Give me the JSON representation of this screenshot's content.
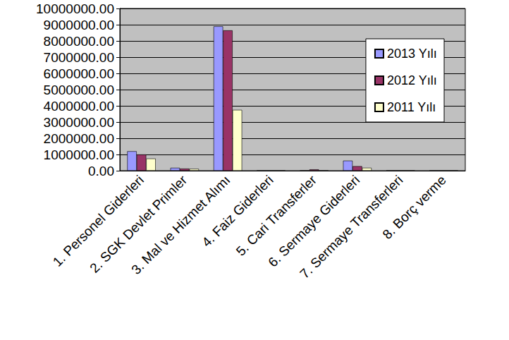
{
  "chart_data": {
    "type": "bar",
    "categories": [
      "1. Personel Giderleri",
      "2. SGK Devlet Primler",
      "3. Mal ve Hizmet Alımı",
      "4. Faiz Giderleri",
      "5. Cari Transferler",
      "6. Sermaye Giderleri",
      "7. Sermaye Transferleri",
      "8. Borç verme"
    ],
    "series": [
      {
        "name": "2013 Yılı",
        "color": "#9999ff",
        "values": [
          1200000,
          180000,
          8900000,
          0,
          0,
          620000,
          0,
          0
        ]
      },
      {
        "name": "2012 Yılı",
        "color": "#993366",
        "values": [
          1000000,
          130000,
          8650000,
          0,
          80000,
          280000,
          0,
          0
        ]
      },
      {
        "name": "2011 Yılı",
        "color": "#ffffcc",
        "values": [
          750000,
          120000,
          3750000,
          0,
          0,
          180000,
          0,
          0
        ]
      }
    ],
    "ylim": [
      0,
      10000000
    ],
    "yticks": [
      {
        "value": 0,
        "label": "0.00"
      },
      {
        "value": 1000000,
        "label": "1000000.00"
      },
      {
        "value": 2000000,
        "label": "2000000.00"
      },
      {
        "value": 3000000,
        "label": "3000000.00"
      },
      {
        "value": 4000000,
        "label": "4000000.00"
      },
      {
        "value": 5000000,
        "label": "5000000.00"
      },
      {
        "value": 6000000,
        "label": "6000000.00"
      },
      {
        "value": 7000000,
        "label": "7000000.00"
      },
      {
        "value": 8000000,
        "label": "8000000.00"
      },
      {
        "value": 9000000,
        "label": "9000000.00"
      },
      {
        "value": 10000000,
        "label": "10000000.00"
      }
    ],
    "grid": true,
    "legend": "upper right"
  }
}
